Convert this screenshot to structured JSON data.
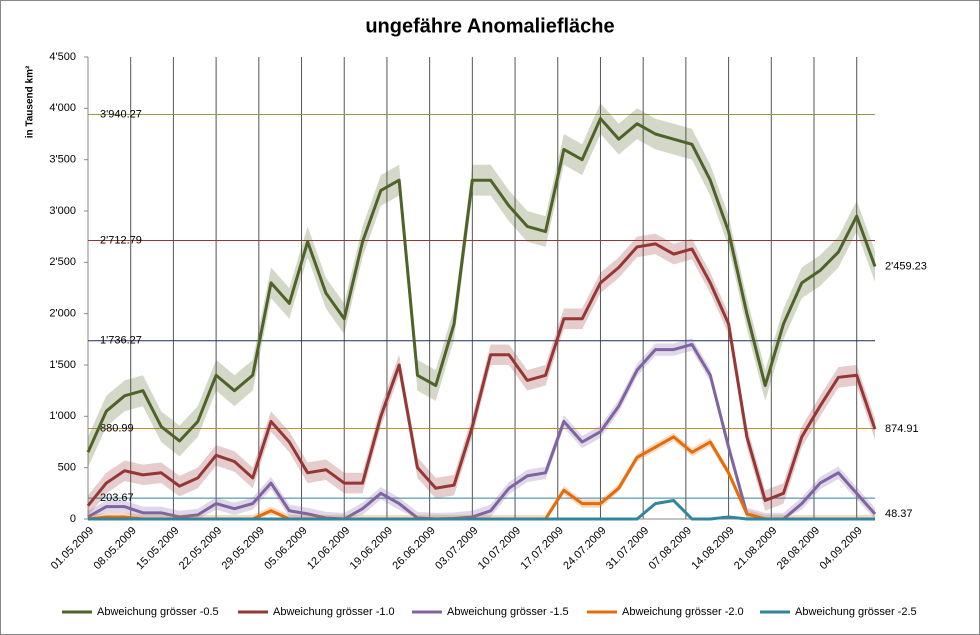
{
  "chart_data": {
    "type": "line",
    "title": "ungefähre Anomaliefläche",
    "y_label": "in Tausend  km²",
    "x": [
      "01.05.2009",
      "04.05.2009",
      "07.05.2009",
      "10.05.2009",
      "13.05.2009",
      "16.05.2009",
      "19.05.2009",
      "22.05.2009",
      "25.05.2009",
      "28.05.2009",
      "31.05.2009",
      "03.06.2009",
      "06.06.2009",
      "09.06.2009",
      "12.06.2009",
      "15.06.2009",
      "18.06.2009",
      "21.06.2009",
      "24.06.2009",
      "27.06.2009",
      "30.06.2009",
      "03.07.2009",
      "06.07.2009",
      "09.07.2009",
      "12.07.2009",
      "15.07.2009",
      "18.07.2009",
      "21.07.2009",
      "24.07.2009",
      "27.07.2009",
      "30.07.2009",
      "02.08.2009",
      "05.08.2009",
      "08.08.2009",
      "11.08.2009",
      "14.08.2009",
      "17.08.2009",
      "20.08.2009",
      "23.08.2009",
      "26.08.2009",
      "29.08.2009",
      "01.09.2009",
      "04.09.2009",
      "07.09.2009"
    ],
    "xlim": [
      "01.05.2009",
      "07.09.2009"
    ],
    "xticks": [
      "01.05.2009",
      "08.05.2009",
      "15.05.2009",
      "22.05.2009",
      "29.05.2009",
      "05.06.2009",
      "12.06.2009",
      "19.06.2009",
      "26.06.2009",
      "03.07.2009",
      "10.07.2009",
      "17.07.2009",
      "24.07.2009",
      "31.07.2009",
      "07.08.2009",
      "14.08.2009",
      "21.08.2009",
      "28.08.2009",
      "04.09.2009"
    ],
    "ylim": [
      0,
      4500
    ],
    "yticks": [
      0,
      500,
      {
        "value": 1000,
        "label": "1'000"
      },
      {
        "value": 1500,
        "label": "1'500"
      },
      {
        "value": 2000,
        "label": "2'000"
      },
      {
        "value": 2500,
        "label": "2'500"
      },
      {
        "value": 3000,
        "label": "3'000"
      },
      {
        "value": 3500,
        "label": "3'500"
      },
      {
        "value": 4000,
        "label": "4'000"
      },
      {
        "value": 4500,
        "label": "4'500"
      }
    ],
    "reference_lines": [
      {
        "value": 3940.27,
        "label": "3'940.27",
        "color": "#9a9a40"
      },
      {
        "value": 2712.79,
        "label": "2'712.79",
        "color": "#953735"
      },
      {
        "value": 1736.27,
        "label": "1'736.27",
        "color": "#1f2f5f"
      },
      {
        "value": 880.99,
        "label": "880.99",
        "color": "#c09020"
      },
      {
        "value": 203.67,
        "label": "203.67",
        "color": "#31859c"
      }
    ],
    "legend": "bottom",
    "series": [
      {
        "name": "Abweichung grösser -0.5",
        "color": "#4f6228",
        "band": 150,
        "end_label": "2'459.23",
        "values": [
          650,
          1050,
          1200,
          1250,
          900,
          760,
          950,
          1400,
          1250,
          1400,
          2300,
          2100,
          2700,
          2200,
          1950,
          2700,
          3200,
          3300,
          1400,
          1300,
          1900,
          3300,
          3300,
          3050,
          2850,
          2800,
          3600,
          3500,
          3900,
          3700,
          3850,
          3750,
          3700,
          3650,
          3300,
          2800,
          2000,
          1300,
          1900,
          2300,
          2420,
          2600,
          2950,
          2459.23
        ]
      },
      {
        "name": "Abweichung grösser -1.0",
        "color": "#953735",
        "band": 100,
        "end_label": "874.91",
        "values": [
          130,
          350,
          470,
          430,
          450,
          320,
          400,
          620,
          560,
          400,
          950,
          750,
          450,
          480,
          350,
          350,
          1000,
          1500,
          500,
          300,
          330,
          900,
          1600,
          1600,
          1350,
          1400,
          1950,
          1950,
          2300,
          2450,
          2650,
          2680,
          2580,
          2630,
          2300,
          1900,
          800,
          180,
          250,
          800,
          1100,
          1380,
          1400,
          874.91
        ]
      },
      {
        "name": "Abweichung grösser -1.5",
        "color": "#8064a2",
        "band": 60,
        "end_label": "48.37",
        "values": [
          20,
          120,
          120,
          60,
          60,
          20,
          40,
          150,
          100,
          150,
          350,
          80,
          50,
          10,
          0,
          100,
          250,
          150,
          10,
          0,
          5,
          20,
          80,
          300,
          420,
          450,
          950,
          750,
          850,
          1100,
          1450,
          1650,
          1650,
          1700,
          1400,
          700,
          50,
          0,
          0,
          150,
          350,
          450,
          250,
          48.37
        ]
      },
      {
        "name": "Abweichung grösser -2.0",
        "color": "#e46c0a",
        "band": 40,
        "values": [
          0,
          20,
          20,
          0,
          0,
          0,
          0,
          0,
          0,
          0,
          80,
          0,
          0,
          0,
          0,
          0,
          0,
          0,
          0,
          0,
          0,
          0,
          0,
          0,
          0,
          0,
          280,
          150,
          150,
          300,
          600,
          700,
          800,
          650,
          750,
          450,
          50,
          0,
          0,
          0,
          0,
          0,
          0,
          0
        ]
      },
      {
        "name": "Abweichung grösser -2.5",
        "color": "#31859c",
        "band": 0,
        "values": [
          0,
          0,
          0,
          0,
          0,
          0,
          0,
          0,
          0,
          0,
          0,
          0,
          0,
          0,
          0,
          0,
          0,
          0,
          0,
          0,
          0,
          0,
          0,
          0,
          0,
          0,
          0,
          0,
          0,
          0,
          0,
          150,
          180,
          0,
          0,
          20,
          0,
          0,
          0,
          0,
          0,
          0,
          0,
          0
        ]
      }
    ]
  }
}
